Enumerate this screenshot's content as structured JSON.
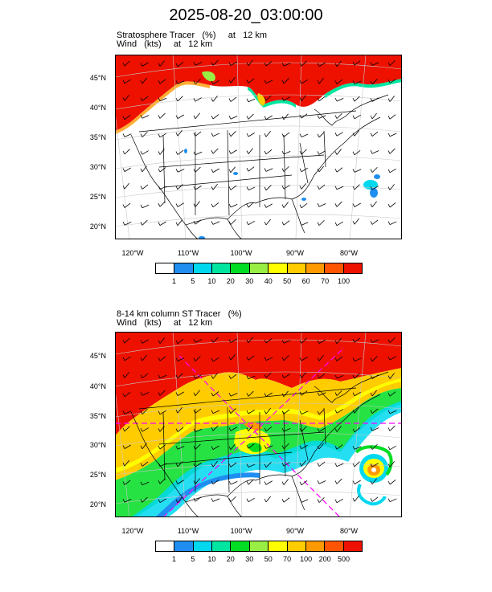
{
  "title": "2025-08-20_03:00:00",
  "panels": [
    {
      "id": "top",
      "title_line1": "Stratosphere Tracer   (%)     at   12 km",
      "title_line2": "Wind   (kts)     at   12 km",
      "lat_labels": [
        "45°N",
        "40°N",
        "35°N",
        "30°N",
        "25°N",
        "20°N"
      ],
      "lon_labels": [
        "120°W",
        "110°W",
        "100°W",
        "90°W",
        "80°W"
      ],
      "colorbar_labels": [
        "1",
        "5",
        "10",
        "20",
        "30",
        "40",
        "50",
        "60",
        "70",
        "100"
      ],
      "colorbar_colors": [
        "#ffffff",
        "#1f8ef0",
        "#00d8f0",
        "#00e6a0",
        "#00dd22",
        "#99ee44",
        "#ffff00",
        "#ffcc00",
        "#ff9900",
        "#ff5500",
        "#ee1100"
      ]
    },
    {
      "id": "bottom",
      "title_line1": "8-14 km column ST Tracer   (%)",
      "title_line2": "Wind   (kts)     at   12 km",
      "lat_labels": [
        "45°N",
        "40°N",
        "35°N",
        "30°N",
        "25°N",
        "20°N"
      ],
      "lon_labels": [
        "120°W",
        "110°W",
        "100°W",
        "90°W",
        "80°W"
      ],
      "colorbar_labels": [
        "1",
        "5",
        "10",
        "20",
        "30",
        "50",
        "70",
        "100",
        "200",
        "500"
      ],
      "colorbar_colors": [
        "#ffffff",
        "#1f8ef0",
        "#00d8f0",
        "#00e6a0",
        "#00dd22",
        "#99ee44",
        "#ffff00",
        "#ffcc00",
        "#ff9900",
        "#ff5500",
        "#ee1100"
      ]
    }
  ]
}
